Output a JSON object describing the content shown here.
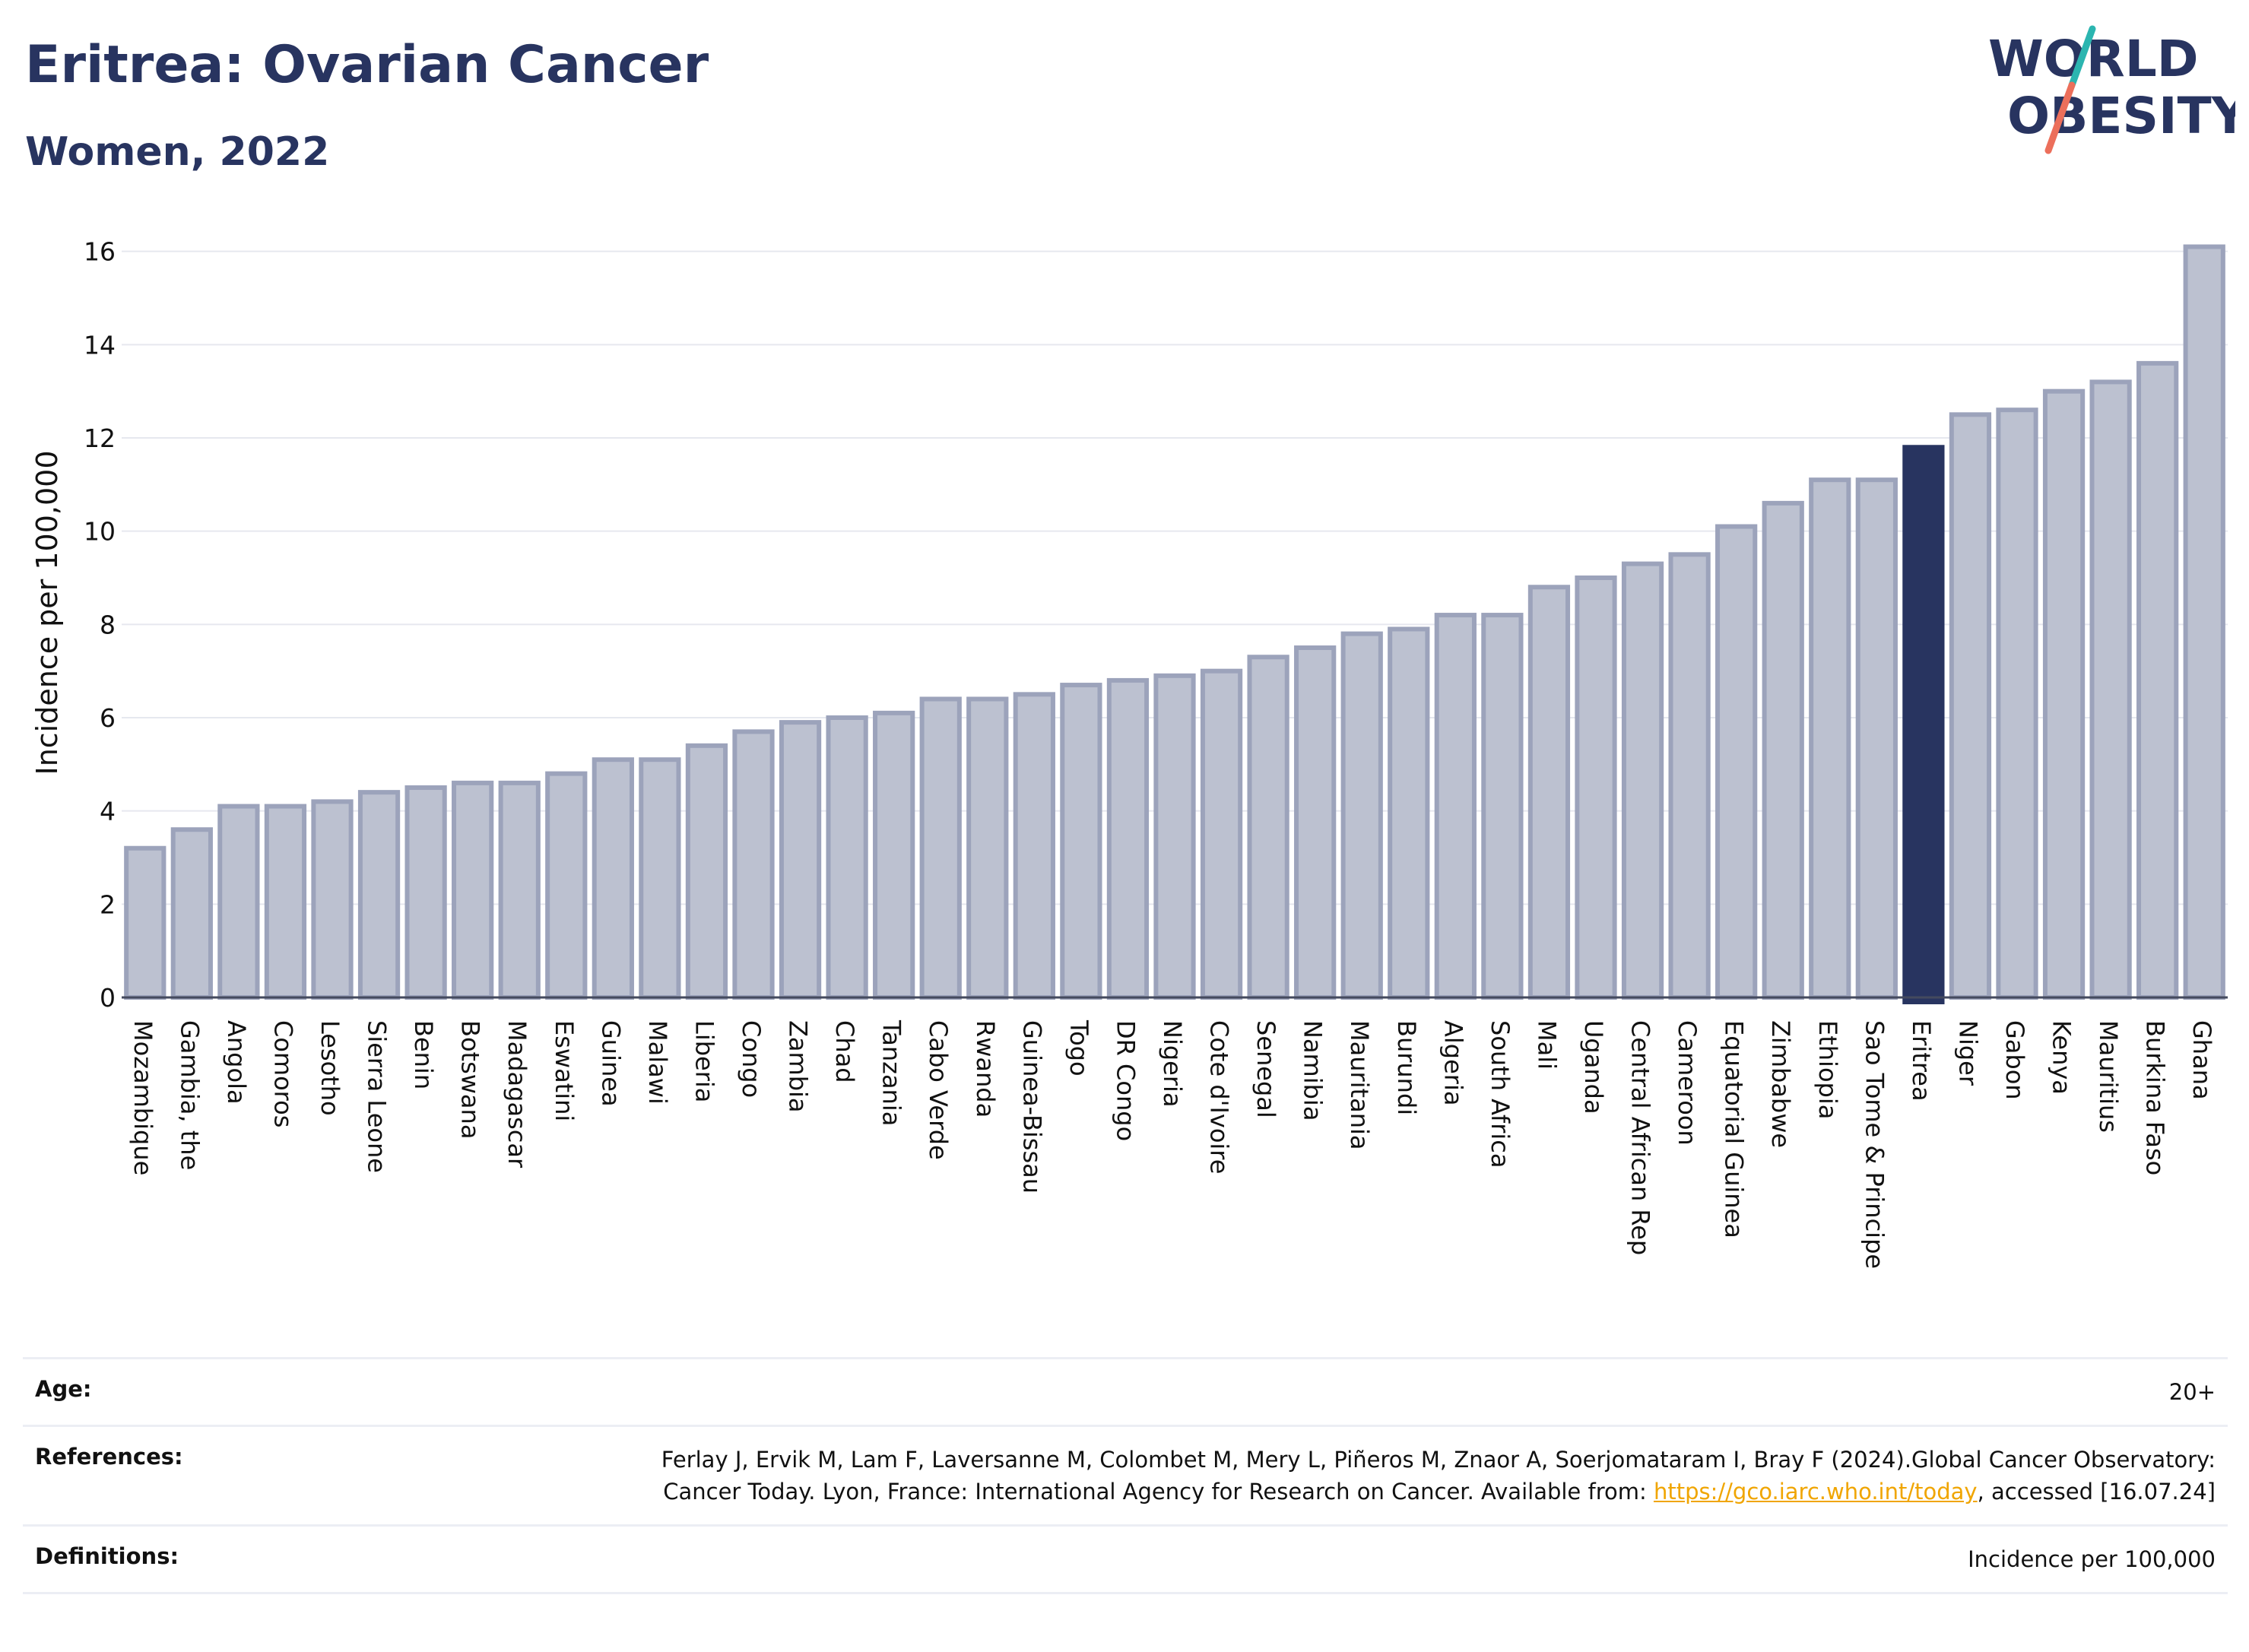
{
  "title": "Eritrea: Ovarian Cancer",
  "subtitle": "Women, 2022",
  "logo": {
    "line1": "WORLD",
    "line2": "OBESITY",
    "colors": {
      "text": "#283460",
      "teal": "#2bb5b0",
      "coral": "#ec6f5b"
    }
  },
  "colors": {
    "bar": "#bcc1d0",
    "bar_stroke": "#9ca3bb",
    "highlight": "#283460",
    "grid": "#e6e8ef"
  },
  "chart_data": {
    "type": "bar",
    "ylabel": "Incidence per 100,000",
    "ylim": [
      0,
      16.5
    ],
    "yticks": [
      0,
      2,
      4,
      6,
      8,
      10,
      12,
      14,
      16
    ],
    "grid": true,
    "highlight": "Eritrea",
    "categories": [
      "Mozambique",
      "Gambia, the",
      "Angola",
      "Comoros",
      "Lesotho",
      "Sierra Leone",
      "Benin",
      "Botswana",
      "Madagascar",
      "Eswatini",
      "Guinea",
      "Malawi",
      "Liberia",
      "Congo",
      "Zambia",
      "Chad",
      "Tanzania",
      "Cabo Verde",
      "Rwanda",
      "Guinea-Bissau",
      "Togo",
      "DR Congo",
      "Nigeria",
      "Cote d'Ivoire",
      "Senegal",
      "Namibia",
      "Mauritania",
      "Burundi",
      "Algeria",
      "South Africa",
      "Mali",
      "Uganda",
      "Central African Rep",
      "Cameroon",
      "Equatorial Guinea",
      "Zimbabwe",
      "Ethiopia",
      "Sao Tome & Principe",
      "Eritrea",
      "Niger",
      "Gabon",
      "Kenya",
      "Mauritius",
      "Burkina Faso",
      "Ghana"
    ],
    "values": [
      3.2,
      3.6,
      4.1,
      4.1,
      4.2,
      4.4,
      4.5,
      4.6,
      4.6,
      4.8,
      5.1,
      5.1,
      5.4,
      5.7,
      5.9,
      6.0,
      6.1,
      6.4,
      6.4,
      6.5,
      6.7,
      6.8,
      6.9,
      7.0,
      7.3,
      7.5,
      7.8,
      7.9,
      8.2,
      8.2,
      8.8,
      9.0,
      9.3,
      9.5,
      10.1,
      10.6,
      11.1,
      11.1,
      11.8,
      12.5,
      12.6,
      13.0,
      13.2,
      13.6,
      16.1
    ]
  },
  "info": {
    "age_label": "Age:",
    "age_value": "20+",
    "references_label": "References:",
    "references_text_1": "Ferlay J, Ervik M, Lam F, Laversanne M, Colombet M, Mery L, Piñeros M, Znaor A, Soerjomataram I, Bray F (2024).Global Cancer Observatory: Cancer Today. Lyon, France: International Agency for Research on Cancer. Available from: ",
    "references_link": "https://gco.iarc.who.int/today",
    "references_text_2": ", accessed [16.07.24]",
    "definitions_label": "Definitions:",
    "definitions_value": "Incidence per 100,000"
  }
}
